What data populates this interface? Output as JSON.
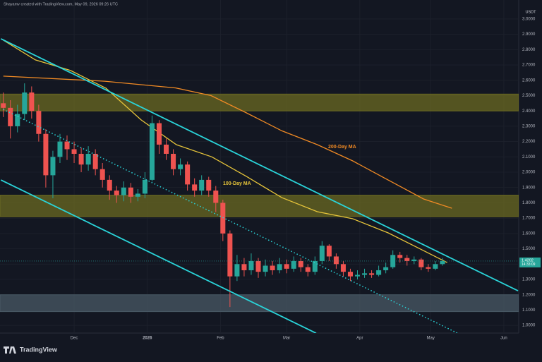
{
  "header": "Shayamv created with TradingView.com, May 09, 2026 09:26 UTC",
  "currency": "USDT",
  "brand": "TradingView",
  "chart_data": {
    "type": "candlestick",
    "x": [
      0,
      3,
      6,
      9,
      12,
      15,
      18,
      21,
      24,
      27,
      30,
      33,
      36,
      39,
      42,
      45,
      48,
      51,
      54,
      57,
      60,
      63,
      66,
      69,
      72,
      75,
      78,
      81,
      84,
      87,
      90,
      93,
      96,
      99,
      102,
      105,
      108,
      111,
      114,
      117,
      120,
      123,
      126,
      129,
      132,
      135,
      138,
      141,
      144,
      147,
      150,
      153,
      156,
      159,
      162,
      165,
      168,
      171,
      174,
      177,
      180,
      183,
      186
    ],
    "open": [
      2.45,
      2.42,
      2.3,
      2.38,
      2.52,
      2.4,
      2.25,
      1.98,
      2.1,
      2.2,
      2.15,
      2.12,
      2.05,
      2.12,
      2.02,
      1.95,
      1.88,
      1.85,
      1.9,
      1.84,
      1.86,
      1.95,
      2.32,
      2.18,
      2.12,
      2.02,
      2.05,
      1.92,
      1.88,
      1.95,
      1.88,
      1.8,
      1.6,
      1.32,
      1.4,
      1.36,
      1.42,
      1.35,
      1.39,
      1.36,
      1.4,
      1.37,
      1.42,
      1.38,
      1.35,
      1.42,
      1.52,
      1.45,
      1.4,
      1.35,
      1.32,
      1.33,
      1.34,
      1.33,
      1.36,
      1.38,
      1.46,
      1.44,
      1.42,
      1.43,
      1.38,
      1.37,
      1.4
    ],
    "high": [
      2.52,
      2.47,
      2.44,
      2.58,
      2.56,
      2.44,
      2.28,
      2.14,
      2.25,
      2.24,
      2.2,
      2.16,
      2.17,
      2.15,
      2.06,
      1.98,
      1.91,
      1.94,
      1.93,
      1.89,
      2.0,
      2.37,
      2.34,
      2.22,
      2.15,
      2.09,
      2.07,
      1.96,
      1.98,
      1.97,
      1.91,
      1.82,
      1.62,
      1.46,
      1.44,
      1.47,
      1.44,
      1.43,
      1.42,
      1.44,
      1.43,
      1.45,
      1.44,
      1.4,
      1.45,
      1.55,
      1.53,
      1.47,
      1.42,
      1.37,
      1.36,
      1.37,
      1.36,
      1.39,
      1.41,
      1.49,
      1.48,
      1.46,
      1.45,
      1.44,
      1.4,
      1.42,
      1.44
    ],
    "low": [
      2.36,
      2.22,
      2.26,
      2.34,
      2.35,
      2.2,
      1.9,
      1.83,
      2.06,
      2.08,
      2.06,
      2.0,
      2.01,
      1.98,
      1.9,
      1.82,
      1.8,
      1.81,
      1.8,
      1.81,
      1.83,
      1.94,
      2.12,
      2.08,
      1.98,
      1.98,
      1.88,
      1.84,
      1.85,
      1.84,
      1.74,
      1.55,
      1.12,
      1.29,
      1.32,
      1.33,
      1.31,
      1.32,
      1.33,
      1.34,
      1.34,
      1.35,
      1.35,
      1.32,
      1.33,
      1.4,
      1.42,
      1.37,
      1.32,
      1.29,
      1.3,
      1.31,
      1.31,
      1.32,
      1.34,
      1.37,
      1.41,
      1.39,
      1.4,
      1.36,
      1.35,
      1.36,
      1.39
    ],
    "close": [
      2.42,
      2.3,
      2.38,
      2.52,
      2.4,
      2.25,
      1.98,
      2.1,
      2.2,
      2.15,
      2.12,
      2.05,
      2.12,
      2.02,
      1.95,
      1.88,
      1.85,
      1.9,
      1.84,
      1.86,
      1.95,
      2.32,
      2.18,
      2.12,
      2.02,
      2.05,
      1.92,
      1.88,
      1.95,
      1.88,
      1.8,
      1.6,
      1.32,
      1.4,
      1.36,
      1.42,
      1.35,
      1.39,
      1.36,
      1.4,
      1.37,
      1.42,
      1.38,
      1.35,
      1.42,
      1.52,
      1.45,
      1.4,
      1.35,
      1.32,
      1.33,
      1.34,
      1.33,
      1.36,
      1.38,
      1.46,
      1.44,
      1.42,
      1.43,
      1.38,
      1.37,
      1.4,
      1.42
    ],
    "up_color": "#26a69a",
    "down_color": "#ef5350",
    "xlim": [
      -1.4,
      218.3
    ],
    "ylim": [
      0.95,
      3.124
    ],
    "xticks": [
      {
        "value": 30,
        "label": "Dec"
      },
      {
        "value": 61,
        "label": "2026"
      },
      {
        "value": 92,
        "label": "Feb"
      },
      {
        "value": 120,
        "label": "Mar"
      },
      {
        "value": 151,
        "label": "Apr"
      },
      {
        "value": 181,
        "label": "May"
      },
      {
        "value": 212,
        "label": "Jun"
      }
    ],
    "yticks": [
      {
        "value": 1.0,
        "label": "1.0000"
      },
      {
        "value": 1.1,
        "label": "1.1000"
      },
      {
        "value": 1.2,
        "label": "1.2000"
      },
      {
        "value": 1.3,
        "label": "1.3000"
      },
      {
        "value": 1.4,
        "label": "1.4000"
      },
      {
        "value": 1.5,
        "label": "1.5000"
      },
      {
        "value": 1.6,
        "label": "1.6000"
      },
      {
        "value": 1.7,
        "label": "1.7000"
      },
      {
        "value": 1.8,
        "label": "1.8000"
      },
      {
        "value": 1.9,
        "label": "1.9000"
      },
      {
        "value": 2.0,
        "label": "2.0000"
      },
      {
        "value": 2.1,
        "label": "2.1000"
      },
      {
        "value": 2.2,
        "label": "2.2000"
      },
      {
        "value": 2.3,
        "label": "2.3000"
      },
      {
        "value": 2.4,
        "label": "2.4000"
      },
      {
        "value": 2.5,
        "label": "2.5000"
      },
      {
        "value": 2.6,
        "label": "2.6000"
      },
      {
        "value": 2.7,
        "label": "2.7000"
      },
      {
        "value": 2.8,
        "label": "2.8000"
      },
      {
        "value": 2.9,
        "label": "2.9000"
      },
      {
        "value": 3.0,
        "label": "3.0000"
      }
    ],
    "grid": true,
    "zones": [
      {
        "low": 2.4,
        "high": 2.51,
        "color": "#6b6a22"
      },
      {
        "low": 1.71,
        "high": 1.85,
        "color": "#6b6a22"
      },
      {
        "low": 1.09,
        "high": 1.2,
        "color": "#4a5a66"
      }
    ],
    "trend_lines": [
      {
        "x": [
          -1,
          218
        ],
        "values": [
          2.871,
          1.226
        ],
        "color": "#2ad4d9",
        "dashed": false
      },
      {
        "x": [
          -1,
          132.5
        ],
        "values": [
          1.949,
          0.949
        ],
        "color": "#2ad4d9",
        "dashed": false
      },
      {
        "x": [
          0,
          192.3
        ],
        "values": [
          2.41,
          0.95
        ],
        "color": "#2ad4d9",
        "dashed": true
      }
    ],
    "moving_averages": [
      {
        "name": "200-Day MA",
        "color": "#f08a24",
        "x": [
          0,
          43,
          73,
          88,
          103,
          118,
          133,
          148,
          163,
          178,
          190
        ],
        "values": [
          2.627,
          2.594,
          2.55,
          2.5,
          2.387,
          2.27,
          2.18,
          2.074,
          1.949,
          1.825,
          1.765
        ]
      },
      {
        "name": "100-Day MA",
        "color": "#e6c43a",
        "x": [
          0,
          13.6,
          28.5,
          43.5,
          58.4,
          73.3,
          88.3,
          103,
          118,
          133,
          148,
          163,
          178,
          188
        ],
        "values": [
          2.862,
          2.733,
          2.664,
          2.548,
          2.341,
          2.18,
          2.1,
          1.972,
          1.834,
          1.742,
          1.696,
          1.604,
          1.488,
          1.41
        ]
      }
    ],
    "last_price": 1.4202,
    "countdown": "14:33:09"
  }
}
